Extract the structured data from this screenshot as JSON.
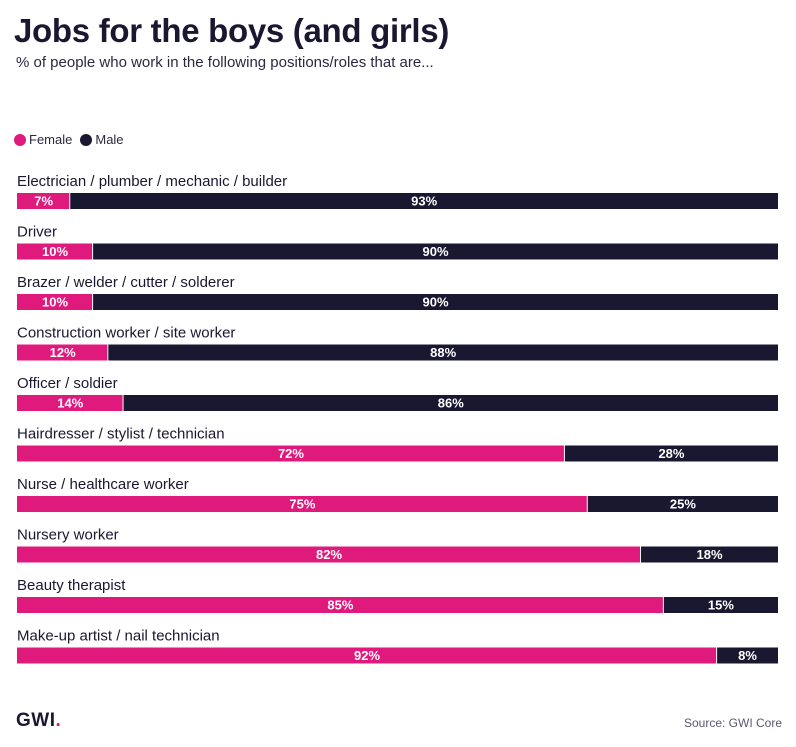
{
  "header": {
    "title": "Jobs for the boys (and girls)",
    "subtitle": "% of people who work in the following positions/roles that are..."
  },
  "legend": {
    "female_label": "Female",
    "male_label": "Male"
  },
  "footer": {
    "logo_text": "GWI",
    "logo_dot": ".",
    "source": "Source: GWI Core"
  },
  "colors": {
    "female": "#e0197d",
    "male": "#1a1730",
    "text": "#1a1730"
  },
  "chart_data": {
    "type": "bar",
    "orientation": "horizontal",
    "stacked": true,
    "normalized_to": 100,
    "title": "Jobs for the boys (and girls)",
    "subtitle": "% of people who work in the following positions/roles that are...",
    "xlim": [
      0,
      100
    ],
    "legend_position": "top-left",
    "categories": [
      "Electrician / plumber / mechanic / builder",
      "Driver",
      "Brazer / welder / cutter / solderer",
      "Construction worker / site worker",
      "Officer / soldier",
      "Hairdresser / stylist / technician",
      "Nurse / healthcare worker",
      "Nursery worker",
      "Beauty therapist",
      "Make-up artist / nail technician"
    ],
    "series": [
      {
        "name": "Female",
        "values": [
          7,
          10,
          10,
          12,
          14,
          72,
          75,
          82,
          85,
          92
        ]
      },
      {
        "name": "Male",
        "values": [
          93,
          90,
          90,
          88,
          86,
          28,
          25,
          18,
          15,
          8
        ]
      }
    ]
  }
}
